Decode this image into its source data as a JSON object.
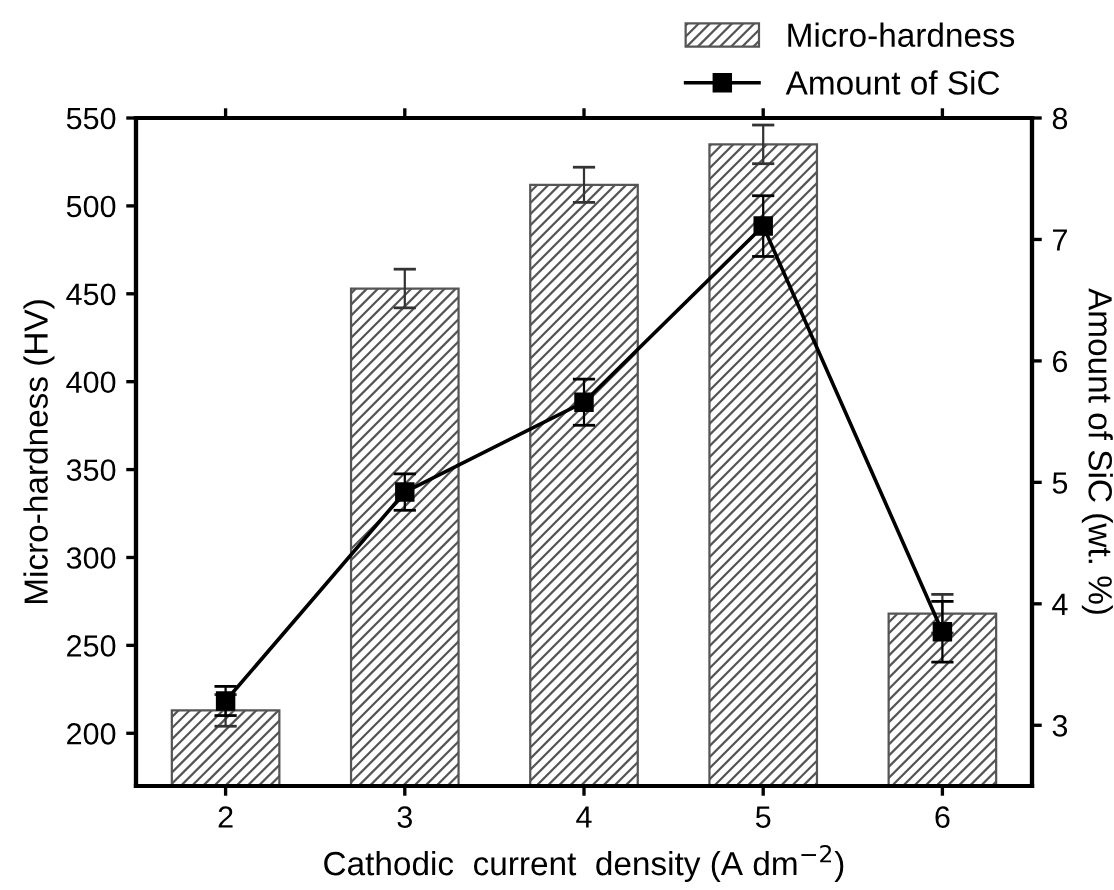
{
  "chart_data": {
    "type": "bar",
    "xlabel": "Cathodic  current  density (A dm$^{−2}$)",
    "ylabel": "Micro-hardness (HV)",
    "y2label": "Amount of SiC (wt. %)",
    "x": [
      2,
      3,
      4,
      5,
      6
    ],
    "xlim": [
      1.5,
      6.5
    ],
    "xticks": [
      2,
      3,
      4,
      5,
      6
    ],
    "ylim": [
      170,
      550
    ],
    "yticks": [
      200,
      250,
      300,
      350,
      400,
      450,
      500,
      550
    ],
    "y2lim": [
      2.5,
      8
    ],
    "y2ticks": [
      3,
      4,
      5,
      6,
      7,
      8
    ],
    "series": [
      {
        "name": "Micro-hardness",
        "color": "#555555",
        "values": [
          213,
          453,
          512,
          535,
          268
        ],
        "errors": [
          9,
          11,
          10,
          11,
          11
        ]
      },
      {
        "name": "Amount of SiC",
        "type": "line",
        "axis": "y2",
        "color": "#000000",
        "marker": "square",
        "values": [
          3.2,
          4.92,
          5.66,
          7.11,
          3.77
        ],
        "errors": [
          0.12,
          0.15,
          0.19,
          0.25,
          0.25
        ]
      }
    ],
    "legend": "top right",
    "grid": false
  }
}
